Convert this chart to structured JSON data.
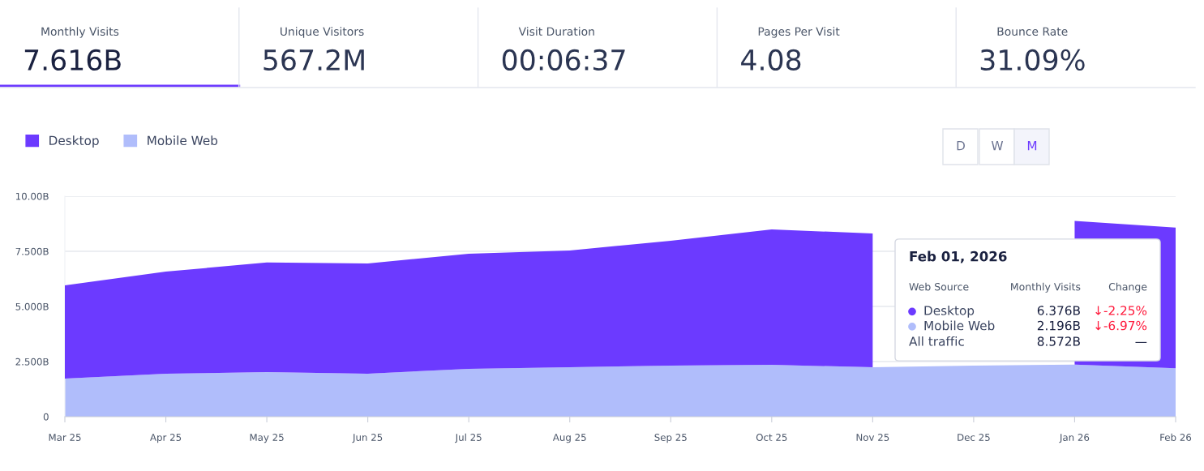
{
  "chart_data": [
    {
      "type": "other",
      "annotations": [
        "Monthly Visits",
        "7.616B",
        "Unique Visitors",
        "567.2M",
        "Visit Duration",
        "00:06:37",
        "Pages Per Visit",
        "4.08",
        "Bounce Rate",
        "31.09%"
      ]
    },
    {
      "type": "area",
      "stacked": true,
      "categories": [
        "Mar 25",
        "Apr 25",
        "May 25",
        "Jun 25",
        "Jul 25",
        "Aug 25",
        "Sep 25",
        "Oct 25",
        "Nov 25",
        "Dec 25",
        "Jan 26",
        "Feb 26"
      ],
      "series": [
        {
          "name": "Mobile Web",
          "color": "#b0bdfb",
          "values": [
            1.73,
            1.95,
            2.02,
            1.95,
            2.17,
            2.24,
            2.32,
            2.35,
            2.24,
            2.32,
            2.36,
            2.196
          ]
        },
        {
          "name": "Desktop",
          "color": "#6c3aff",
          "values": [
            4.23,
            4.63,
            4.97,
            5.0,
            5.22,
            5.3,
            5.66,
            6.14,
            6.07,
            null,
            6.52,
            6.376
          ]
        }
      ],
      "ylim": [
        0,
        10
      ],
      "yticks": [
        0,
        {
          "value": 2.5,
          "label": "2.500B"
        },
        {
          "value": 5,
          "label": "5.000B"
        },
        {
          "value": 7.5,
          "label": "7.500B"
        },
        {
          "value": 10,
          "label": "10.00B"
        }
      ],
      "grid": "y",
      "legend": "top left",
      "annotations": [
        "D",
        "W",
        "M",
        "Feb 01, 2026",
        "Web Source",
        "Monthly Visits",
        "Change",
        "Desktop",
        "6.376B",
        "↓-2.25%",
        "Mobile Web",
        "2.196B",
        "↓-6.97%",
        "All traffic",
        "8.572B",
        "—"
      ]
    }
  ]
}
